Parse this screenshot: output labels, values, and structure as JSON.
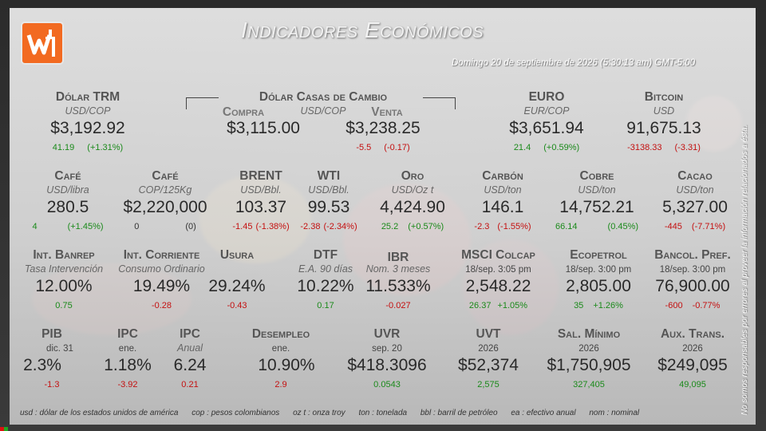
{
  "header": {
    "title": "Indicadores Económicos",
    "datetime": "Domingo 20 de septiembre de 2026 (5:30:13 am) GMT-5:00",
    "side_note": "No somos responsables por errores al proveer la información relacionados a ésta."
  },
  "indicators": {
    "dolar_trm": {
      "label": "Dólar TRM",
      "unit": "USD/COP",
      "value": "$3,192.92",
      "chg_abs": "41.19",
      "chg_pct": "(+1.31%)"
    },
    "casas_cambio": {
      "label": "Dólar Casas de Cambio",
      "unit": "USD/COP",
      "compra_label": "Compra",
      "venta_label": "Venta",
      "compra_value": "$3,115.00",
      "venta_value": "$3,238.25",
      "venta_abs": "-5.5",
      "venta_pct": "(-0.17)"
    },
    "euro": {
      "label": "EURO",
      "unit": "EUR/COP",
      "value": "$3,651.94",
      "chg_abs": "21.4",
      "chg_pct": "(+0.59%)"
    },
    "bitcoin": {
      "label": "Bitcoin",
      "unit": "USD",
      "value": "91,675.13",
      "chg_abs": "-3138.33",
      "chg_pct": "(-3.31)"
    },
    "cafe_usd": {
      "label": "Café",
      "unit": "USD/libra",
      "value": "280.5",
      "chg_abs": "4",
      "chg_pct": "(+1.45%)"
    },
    "cafe_cop": {
      "label": "Café",
      "unit": "COP/125Kg",
      "value": "$2,220,000",
      "chg_abs": "0",
      "chg_pct": "(0)"
    },
    "brent": {
      "label": "BRENT",
      "unit": "USD/Bbl.",
      "value": "103.37",
      "chg_abs": "-1.45",
      "chg_pct": "(-1.38%)"
    },
    "wti": {
      "label": "WTI",
      "unit": "USD/Bbl.",
      "value": "99.53",
      "chg_abs": "-2.38",
      "chg_pct": "(-2.34%)"
    },
    "oro": {
      "label": "Oro",
      "unit": "USD/Oz t",
      "value": "4,424.90",
      "chg_abs": "25.2",
      "chg_pct": "(+0.57%)"
    },
    "carbon": {
      "label": "Carbón",
      "unit": "USD/ton",
      "value": "146.1",
      "chg_abs": "-2.3",
      "chg_pct": "(-1.55%)"
    },
    "cobre": {
      "label": "Cobre",
      "unit": "USD/ton",
      "value": "14,752.21",
      "chg_abs": "66.14",
      "chg_pct": "(0.45%)"
    },
    "cacao": {
      "label": "Cacao",
      "unit": "USD/ton",
      "value": "5,327.00",
      "chg_abs": "-445",
      "chg_pct": "(-7.71%)"
    },
    "int_banrep": {
      "label": "Int. Banrep",
      "unit": "Tasa Intervención",
      "value": "12.00%",
      "chg": "0.75"
    },
    "int_corriente": {
      "label": "Int. Corriente",
      "unit": "Consumo Ordinario",
      "value": "19.49%",
      "chg": "-0.28"
    },
    "usura": {
      "label": "Usura",
      "unit": "",
      "value": "29.24%",
      "chg": "-0.43"
    },
    "dtf": {
      "label": "DTF",
      "unit": "E.A. 90 días",
      "value": "10.22%",
      "chg": "0.17"
    },
    "ibr": {
      "label": "IBR",
      "unit": "Nom. 3 meses",
      "value": "11.533%",
      "chg": "-0.027"
    },
    "msci": {
      "label": "MSCI Colcap",
      "unit": "18/sep. 3:05 pm",
      "value": "2,548.22",
      "chg_abs": "26.37",
      "chg_pct": "+1.05%"
    },
    "ecopetrol": {
      "label": "Ecopetrol",
      "unit": "18/sep. 3:00 pm",
      "value": "2,805.00",
      "chg_abs": "35",
      "chg_pct": "+1.26%"
    },
    "bancol": {
      "label": "Bancol. Pref.",
      "unit": "18/sep. 3:00 pm",
      "value": "76,900.00",
      "chg_abs": "-600",
      "chg_pct": "-0.77%"
    },
    "pib": {
      "label": "PIB",
      "unit": "dic. 31",
      "value": "2.3%",
      "chg": "-1.3"
    },
    "ipc1": {
      "label": "IPC",
      "unit": "ene.",
      "value": "1.18%",
      "chg": "-3.92"
    },
    "ipc2": {
      "label": "IPC",
      "unit": "Anual",
      "value": "6.24",
      "chg": "0.21"
    },
    "desempleo": {
      "label": "Desempleo",
      "unit": "ene.",
      "value": "10.90%",
      "chg": "2.9"
    },
    "uvr": {
      "label": "UVR",
      "unit": "sep. 20",
      "value": "$418.3096",
      "chg": "0.0543"
    },
    "uvt": {
      "label": "UVT",
      "unit": "2026",
      "value": "$52,374",
      "chg": "2,575"
    },
    "sal_minimo": {
      "label": "Sal. Mínimo",
      "unit": "2026",
      "value": "$1,750,905",
      "chg": "327,405"
    },
    "aux_trans": {
      "label": "Aux. Trans.",
      "unit": "2026",
      "value": "$249,095",
      "chg": "49,095"
    }
  },
  "footer": [
    "usd : dólar de los estados unidos de américa",
    "cop : pesos colombianos",
    "oz t : onza troy",
    "ton : tonelada",
    "bbl : barril de petróleo",
    "ea : efectivo anual",
    "nom : nominal"
  ],
  "colors": {
    "brand": "#f26a21",
    "positive": "#1a8a1a",
    "negative": "#c41010"
  }
}
